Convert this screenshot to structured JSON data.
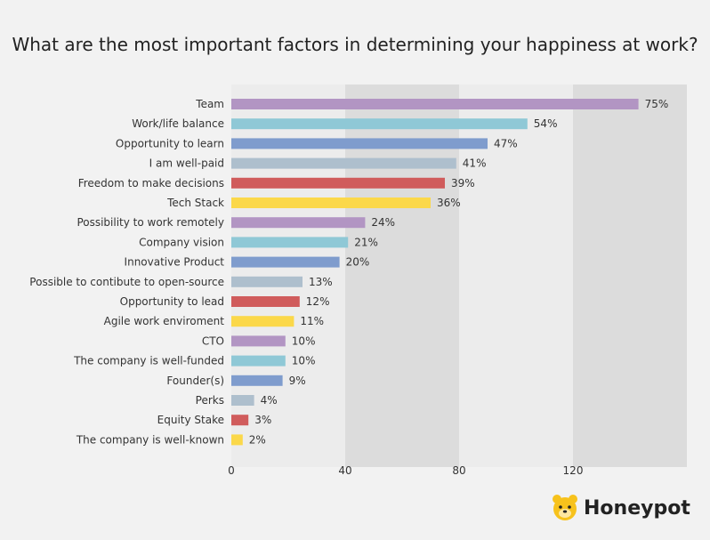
{
  "chart_data": {
    "type": "bar",
    "orientation": "horizontal",
    "title": "What are the most important factors in determining your happiness at work?",
    "categories": [
      "Team",
      "Work/life balance",
      "Opportunity to learn",
      "I am well-paid",
      "Freedom to make decisions",
      "Tech Stack",
      "Possibility to work remotely",
      "Company vision",
      "Innovative Product",
      "Possible to contibute to open-source",
      "Opportunity to lead",
      "Agile work enviroment",
      "CTO",
      "The company is well-funded",
      "Founder(s)",
      "Perks",
      "Equity Stake",
      "The company is well-known"
    ],
    "values": [
      143,
      104,
      90,
      79,
      75,
      70,
      47,
      41,
      38,
      25,
      24,
      22,
      19,
      19,
      18,
      8,
      6,
      4
    ],
    "value_labels": [
      "75%",
      "54%",
      "47%",
      "41%",
      "39%",
      "36%",
      "24%",
      "21%",
      "20%",
      "13%",
      "12%",
      "11%",
      "10%",
      "10%",
      "9%",
      "4%",
      "3%",
      "2%"
    ],
    "colors": [
      "#b295c3",
      "#8fc8d6",
      "#7f9ccd",
      "#aebfcd",
      "#d05c5c",
      "#fbd84a",
      "#b295c3",
      "#8fc8d6",
      "#7f9ccd",
      "#aebfcd",
      "#d05c5c",
      "#fbd84a",
      "#b295c3",
      "#8fc8d6",
      "#7f9ccd",
      "#aebfcd",
      "#d05c5c",
      "#fbd84a"
    ],
    "x_ticks": [
      0,
      40,
      80,
      120
    ],
    "xlim": [
      0,
      160
    ],
    "grid": "alternating bands"
  },
  "brand": {
    "name": "Honeypot",
    "icon": "bear-icon"
  }
}
